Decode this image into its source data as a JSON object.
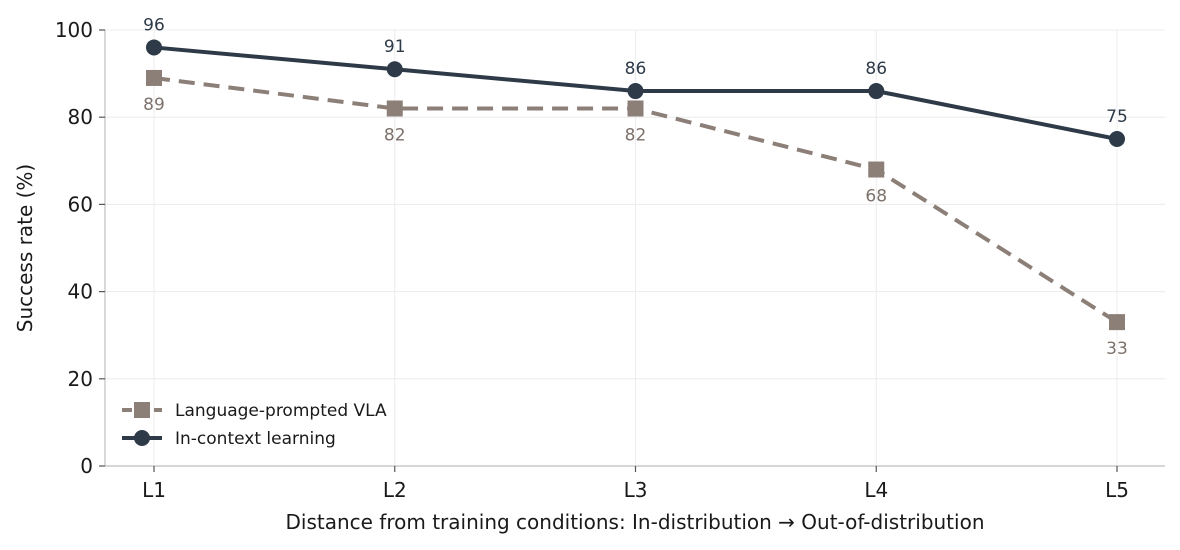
{
  "chart_data": {
    "type": "line",
    "categories": [
      "L1",
      "L2",
      "L3",
      "L4",
      "L5"
    ],
    "series": [
      {
        "name": "Language-prompted VLA",
        "values": [
          89,
          82,
          82,
          68,
          33
        ],
        "color": "#8c7f78",
        "style": "dashed",
        "marker": "square",
        "label_position": "below"
      },
      {
        "name": "In-context learning",
        "values": [
          96,
          91,
          86,
          86,
          75
        ],
        "color": "#2e3a48",
        "style": "solid",
        "marker": "circle",
        "label_position": "above"
      }
    ],
    "xlabel": "Distance from training conditions:  In-distribution  →  Out-of-distribution",
    "ylabel": "Success rate (%)",
    "ylim": [
      0,
      100
    ],
    "yticks": [
      0,
      20,
      40,
      60,
      80,
      100
    ],
    "grid": true,
    "legend": "lower-left"
  }
}
